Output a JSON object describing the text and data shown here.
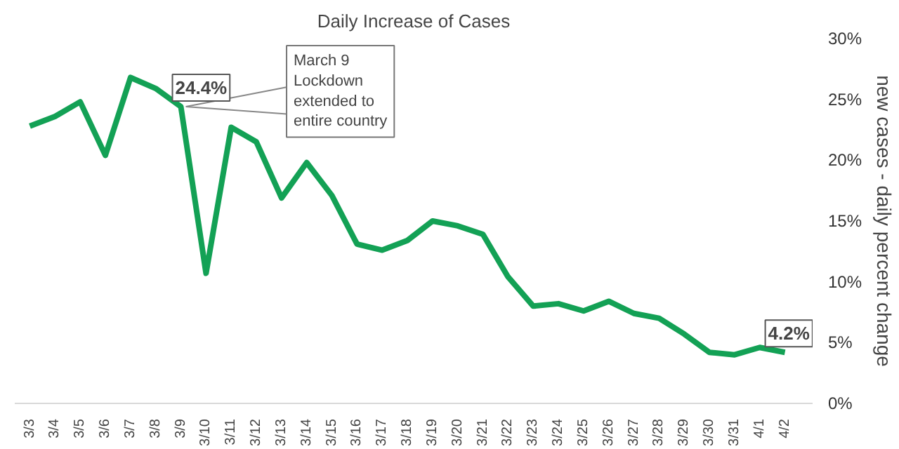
{
  "chart_data": {
    "type": "line",
    "title": "Daily Increase of Cases",
    "ylabel": "new cases - daily percent change",
    "categories": [
      "3/3",
      "3/4",
      "3/5",
      "3/6",
      "3/7",
      "3/8",
      "3/9",
      "3/10",
      "3/11",
      "3/12",
      "3/13",
      "3/14",
      "3/15",
      "3/16",
      "3/17",
      "3/18",
      "3/19",
      "3/20",
      "3/21",
      "3/22",
      "3/23",
      "3/24",
      "3/25",
      "3/26",
      "3/27",
      "3/28",
      "3/29",
      "3/30",
      "3/31",
      "4/1",
      "4/2"
    ],
    "series": [
      {
        "color": "#13a155",
        "values": [
          22.8,
          23.6,
          24.8,
          20.4,
          26.8,
          25.9,
          24.4,
          10.7,
          22.7,
          21.5,
          16.9,
          19.8,
          17.1,
          13.1,
          12.6,
          13.4,
          15.0,
          14.6,
          13.9,
          10.4,
          8.0,
          8.2,
          7.6,
          8.4,
          7.4,
          7.0,
          5.7,
          4.2,
          4.0,
          4.6,
          4.2
        ],
        "value_labels": [
          null,
          null,
          null,
          null,
          null,
          null,
          "24.4%",
          null,
          null,
          null,
          null,
          null,
          null,
          null,
          null,
          null,
          null,
          null,
          null,
          null,
          null,
          null,
          null,
          null,
          null,
          null,
          null,
          null,
          null,
          null,
          "4.2%"
        ]
      }
    ],
    "ylim": [
      0,
      30
    ],
    "yticks": [
      {
        "value": 0,
        "label": "0%"
      },
      {
        "value": 5,
        "label": "5%"
      },
      {
        "value": 10,
        "label": "10%"
      },
      {
        "value": 15,
        "label": "15%"
      },
      {
        "value": 20,
        "label": "20%"
      },
      {
        "value": 25,
        "label": "25%"
      },
      {
        "value": 30,
        "label": "30%"
      }
    ],
    "annotations": [
      {
        "text": "March 9\nLockdown\nextended to\nentire country",
        "x": "3/9",
        "y": 24.4
      }
    ],
    "grid": false,
    "marker": "none",
    "line_style": "solid"
  }
}
